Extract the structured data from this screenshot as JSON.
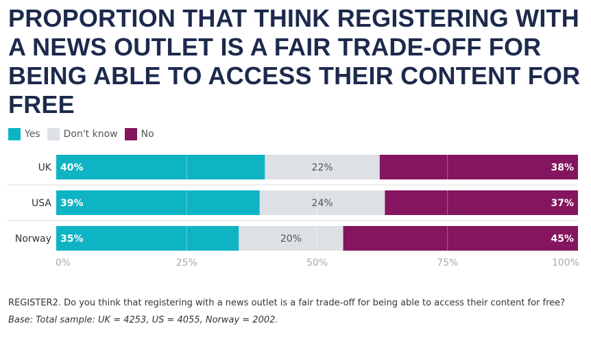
{
  "chart_data": {
    "type": "bar",
    "stacked": true,
    "orientation": "horizontal",
    "title": "PROPORTION THAT THINK REGISTERING WITH A NEWS OUTLET IS A FAIR TRADE-OFF FOR BEING ABLE TO ACCESS THEIR CONTENT FOR FREE",
    "categories": [
      "UK",
      "USA",
      "Norway"
    ],
    "series": [
      {
        "name": "Yes",
        "color": "#0fb4c4",
        "values": [
          40,
          39,
          35
        ],
        "labels": [
          "40%",
          "39%",
          "35%"
        ]
      },
      {
        "name": "Don't know",
        "color": "#dde1e6",
        "values": [
          22,
          24,
          20
        ],
        "labels": [
          "22%",
          "24%",
          "20%"
        ]
      },
      {
        "name": "No",
        "color": "#84155e",
        "values": [
          38,
          37,
          45
        ],
        "labels": [
          "38%",
          "37%",
          "45%"
        ]
      }
    ],
    "xlim": [
      0,
      100
    ],
    "xticks": [
      "0%",
      "25%",
      "50%",
      "75%",
      "100%"
    ],
    "legend_position": "top-left",
    "grid": true
  },
  "footer": {
    "question": "REGISTER2. Do you think that registering with a news outlet is a fair trade-off for being able to access their content for free?",
    "base": "Base: Total sample: UK = 4253, US = 4055, Norway = 2002."
  }
}
